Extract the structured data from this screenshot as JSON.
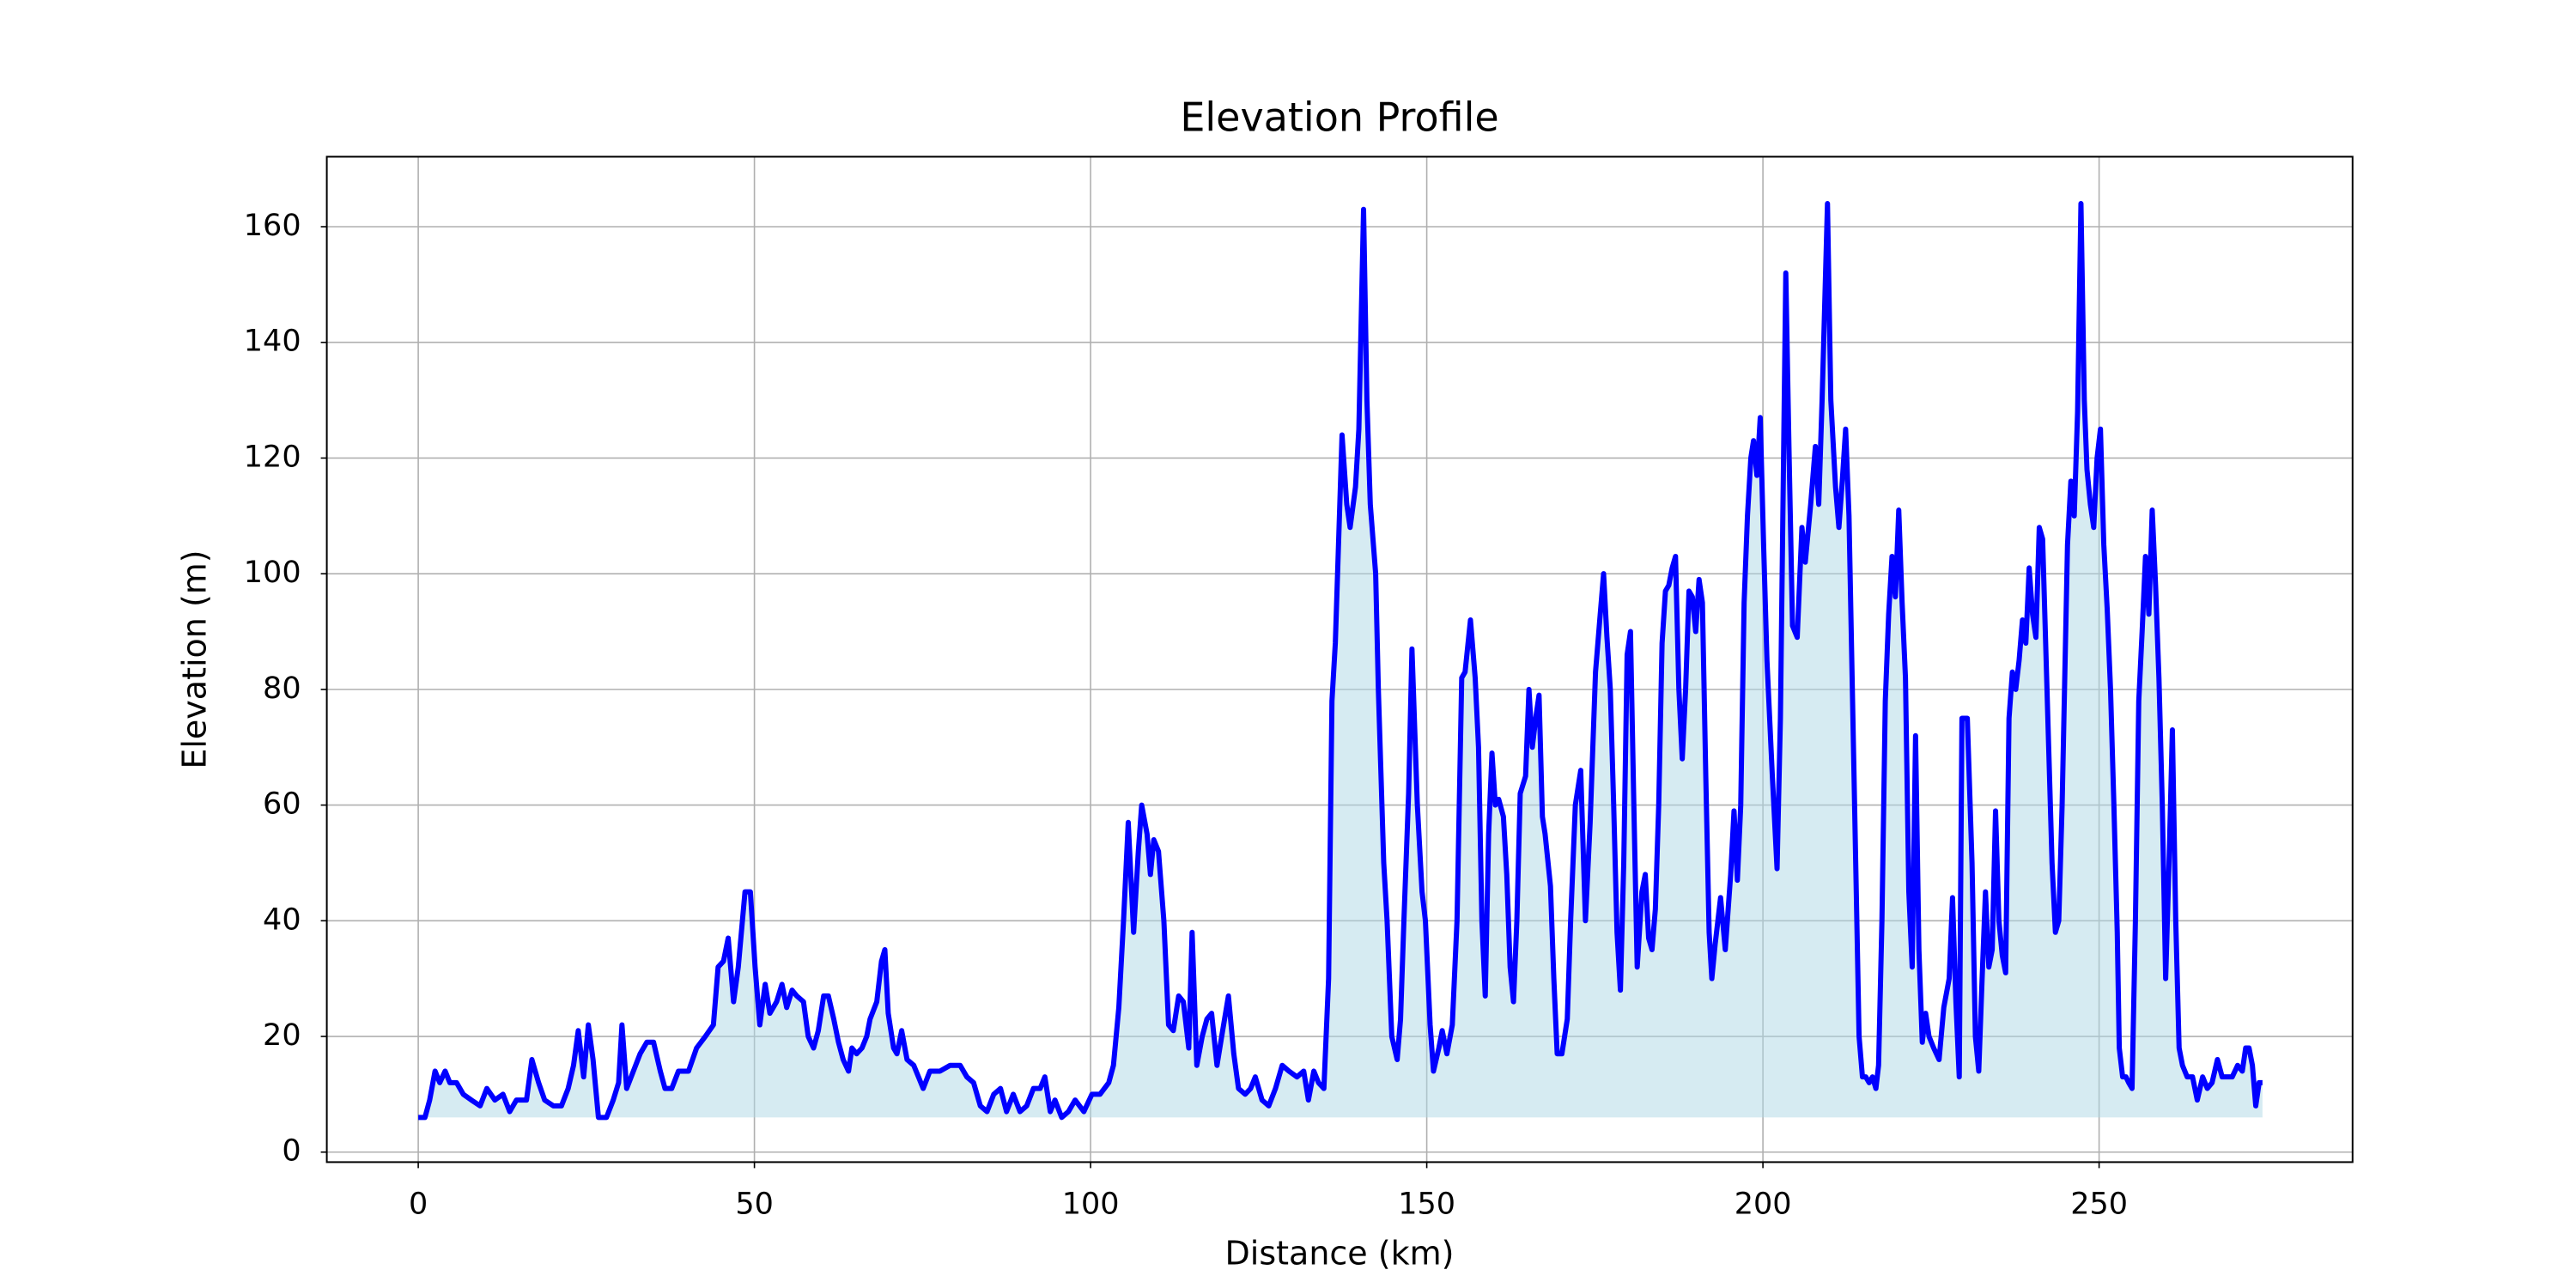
{
  "chart_data": {
    "type": "area-line",
    "title": "Elevation Profile",
    "x_label": "Distance (km)",
    "y_label": "Elevation (m)",
    "x": [
      0,
      1.0,
      1.7,
      2.5,
      3.2,
      4.0,
      4.7,
      5.7,
      6.7,
      7.9,
      9.2,
      10.2,
      11.4,
      12.6,
      13.6,
      14.6,
      16.1,
      16.9,
      17.9,
      18.8,
      20.1,
      21.3,
      22.3,
      23.1,
      23.8,
      24.6,
      25.3,
      26.0,
      26.8,
      28.0,
      29.0,
      29.8,
      30.3,
      31.0,
      32.0,
      33.0,
      34.0,
      35.0,
      36.0,
      36.7,
      37.7,
      38.7,
      40.2,
      41.4,
      42.7,
      43.9,
      44.6,
      45.4,
      46.1,
      46.9,
      47.6,
      48.6,
      49.4,
      50.1,
      50.8,
      51.6,
      52.3,
      53.3,
      54.1,
      54.8,
      55.6,
      56.3,
      57.3,
      58.0,
      58.8,
      59.5,
      60.3,
      61.0,
      61.8,
      62.5,
      63.2,
      64.0,
      64.5,
      65.2,
      66.0,
      66.7,
      67.2,
      68.2,
      68.9,
      69.4,
      69.9,
      70.7,
      71.2,
      71.9,
      72.7,
      73.7,
      74.4,
      75.1,
      76.1,
      77.6,
      79.1,
      80.6,
      81.6,
      82.6,
      83.6,
      84.6,
      85.6,
      86.6,
      87.5,
      88.5,
      89.5,
      90.5,
      91.5,
      92.5,
      93.2,
      94.0,
      94.7,
      95.7,
      96.7,
      97.7,
      99.0,
      100.2,
      101.4,
      102.7,
      103.4,
      104.2,
      104.9,
      105.6,
      106.4,
      107.1,
      107.6,
      108.4,
      108.9,
      109.4,
      110.1,
      110.9,
      111.6,
      112.3,
      113.1,
      113.8,
      114.6,
      115.1,
      115.8,
      116.6,
      117.3,
      118.0,
      118.8,
      119.5,
      120.5,
      121.3,
      122.0,
      123.0,
      123.8,
      124.5,
      125.5,
      126.5,
      127.5,
      128.5,
      129.5,
      130.7,
      131.7,
      132.4,
      133.2,
      133.9,
      134.7,
      135.4,
      135.9,
      136.4,
      136.9,
      137.4,
      138.1,
      138.6,
      139.4,
      139.9,
      140.6,
      141.1,
      141.6,
      142.4,
      142.8,
      143.6,
      144.1,
      144.8,
      145.6,
      146.1,
      146.6,
      147.3,
      147.8,
      148.6,
      149.3,
      149.8,
      150.5,
      151.0,
      151.8,
      152.3,
      153.0,
      153.8,
      154.5,
      155.2,
      155.7,
      156.5,
      157.2,
      157.7,
      158.2,
      158.7,
      159.2,
      159.7,
      160.2,
      160.7,
      161.4,
      161.9,
      162.4,
      162.9,
      163.4,
      163.9,
      164.7,
      165.2,
      165.7,
      166.2,
      166.7,
      167.2,
      167.6,
      168.4,
      168.9,
      169.4,
      170.1,
      170.9,
      171.4,
      172.1,
      172.9,
      173.6,
      174.3,
      175.1,
      175.8,
      176.3,
      176.8,
      177.3,
      177.8,
      178.3,
      178.8,
      179.3,
      179.8,
      180.3,
      180.8,
      181.3,
      182.0,
      182.5,
      183.0,
      183.5,
      184.0,
      184.5,
      185.0,
      185.5,
      186.0,
      186.5,
      187.0,
      187.5,
      188.0,
      188.5,
      189.0,
      189.5,
      190.0,
      190.5,
      191.0,
      191.5,
      192.0,
      192.4,
      192.9,
      193.7,
      194.4,
      195.2,
      195.7,
      196.2,
      196.7,
      197.2,
      197.7,
      198.2,
      198.6,
      199.1,
      199.6,
      200.1,
      200.6,
      201.4,
      202.1,
      202.6,
      203.4,
      203.9,
      204.4,
      205.1,
      205.8,
      206.3,
      207.1,
      207.8,
      208.3,
      208.8,
      209.6,
      210.1,
      210.8,
      211.3,
      211.8,
      212.3,
      212.8,
      213.3,
      213.8,
      214.3,
      214.8,
      215.3,
      215.8,
      216.3,
      216.8,
      217.2,
      217.7,
      218.2,
      218.7,
      219.2,
      219.7,
      220.2,
      220.7,
      221.2,
      221.7,
      222.2,
      222.7,
      223.2,
      223.7,
      224.2,
      224.7,
      225.4,
      226.2,
      226.9,
      227.7,
      228.2,
      228.7,
      229.2,
      229.6,
      230.4,
      231.1,
      231.6,
      232.1,
      232.6,
      233.1,
      233.6,
      234.1,
      234.6,
      235.1,
      235.6,
      236.1,
      236.6,
      237.1,
      237.6,
      238.1,
      238.6,
      239.1,
      239.6,
      240.1,
      240.6,
      241.1,
      241.6,
      242.0,
      242.5,
      243.0,
      243.5,
      244.0,
      244.5,
      245.3,
      245.8,
      246.3,
      246.8,
      247.3,
      247.8,
      248.2,
      248.7,
      249.2,
      249.7,
      250.2,
      250.7,
      251.2,
      251.7,
      252.2,
      252.7,
      253.0,
      253.5,
      254.0,
      254.4,
      254.9,
      255.4,
      255.9,
      256.4,
      256.9,
      257.4,
      257.9,
      258.4,
      258.9,
      259.4,
      259.9,
      260.4,
      260.9,
      261.4,
      261.9,
      262.4,
      263.1,
      263.9,
      264.6,
      265.4,
      266.1,
      266.8,
      267.6,
      268.3,
      269.1,
      269.8,
      270.6,
      271.3,
      271.8,
      272.3,
      272.8,
      273.3,
      273.8,
      274.3
    ],
    "values": [
      6,
      6,
      9,
      14,
      12,
      14,
      12,
      12,
      10,
      9,
      8,
      11,
      9,
      10,
      7,
      9,
      9,
      16,
      12,
      9,
      8,
      8,
      11,
      15,
      21,
      13,
      22,
      16,
      6,
      6,
      9,
      12,
      22,
      11,
      14,
      17,
      19,
      19,
      14,
      11,
      11,
      14,
      14,
      18,
      20,
      22,
      32,
      33,
      37,
      26,
      32,
      45,
      45,
      32,
      22,
      29,
      24,
      26,
      29,
      25,
      28,
      27,
      26,
      20,
      18,
      21,
      27,
      27,
      23,
      19,
      16,
      14,
      18,
      17,
      18,
      20,
      23,
      26,
      33,
      35,
      24,
      18,
      17,
      21,
      16,
      15,
      13,
      11,
      14,
      14,
      15,
      15,
      13,
      12,
      8,
      7,
      10,
      11,
      7,
      10,
      7,
      8,
      11,
      11,
      13,
      7,
      9,
      6,
      7,
      9,
      7,
      10,
      10,
      12,
      15,
      25,
      40,
      57,
      38,
      52,
      60,
      55,
      48,
      54,
      52,
      40,
      22,
      21,
      27,
      26,
      18,
      38,
      15,
      20,
      23,
      24,
      15,
      20,
      27,
      17,
      11,
      10,
      11,
      13,
      9,
      8,
      11,
      15,
      14,
      13,
      14,
      9,
      14,
      12,
      11,
      30,
      78,
      88,
      106,
      124,
      112,
      108,
      115,
      125,
      163,
      130,
      112,
      100,
      80,
      50,
      40,
      20,
      16,
      23,
      40,
      62,
      87,
      60,
      45,
      40,
      22,
      14,
      18,
      21,
      17,
      22,
      40,
      82,
      83,
      92,
      82,
      70,
      40,
      27,
      55,
      69,
      60,
      61,
      58,
      48,
      32,
      26,
      40,
      62,
      65,
      80,
      70,
      75,
      79,
      58,
      55,
      46,
      30,
      17,
      17,
      23,
      40,
      60,
      66,
      40,
      57,
      83,
      93,
      100,
      89,
      80,
      60,
      38,
      28,
      50,
      86,
      90,
      60,
      32,
      45,
      48,
      37,
      35,
      42,
      60,
      88,
      97,
      98,
      101,
      103,
      80,
      68,
      80,
      97,
      96,
      90,
      99,
      95,
      65,
      38,
      30,
      36,
      44,
      35,
      48,
      59,
      47,
      60,
      95,
      110,
      120,
      123,
      117,
      127,
      105,
      85,
      65,
      49,
      75,
      152,
      120,
      91,
      89,
      108,
      102,
      112,
      122,
      112,
      130,
      164,
      130,
      115,
      108,
      116,
      125,
      110,
      80,
      50,
      20,
      13,
      13,
      12,
      13,
      11,
      15,
      40,
      78,
      93,
      103,
      96,
      111,
      95,
      82,
      45,
      32,
      72,
      35,
      19,
      24,
      20,
      18,
      16,
      25,
      30,
      44,
      26,
      13,
      75,
      75,
      50,
      20,
      14,
      30,
      45,
      32,
      35,
      59,
      40,
      34,
      31,
      75,
      83,
      80,
      85,
      92,
      88,
      101,
      93,
      89,
      108,
      106,
      90,
      70,
      50,
      38,
      40,
      60,
      105,
      116,
      110,
      128,
      164,
      130,
      118,
      112,
      108,
      120,
      125,
      105,
      94,
      80,
      60,
      38,
      18,
      13,
      13,
      12,
      11,
      40,
      78,
      90,
      103,
      93,
      111,
      98,
      82,
      60,
      30,
      50,
      73,
      40,
      18,
      15,
      13,
      13,
      9,
      13,
      11,
      12,
      16,
      13,
      13,
      13,
      15,
      14,
      18,
      18,
      15,
      8,
      12,
      12
    ],
    "color": "#0000ff",
    "fill_color": "#add8e6",
    "xlim": [
      -13.6,
      287.7
    ],
    "ylim": [
      -1.73,
      172.1
    ],
    "xticks": [
      0,
      50,
      100,
      150,
      200,
      250
    ],
    "yticks": [
      0,
      20,
      40,
      60,
      80,
      100,
      120,
      140,
      160
    ],
    "grid": true
  }
}
